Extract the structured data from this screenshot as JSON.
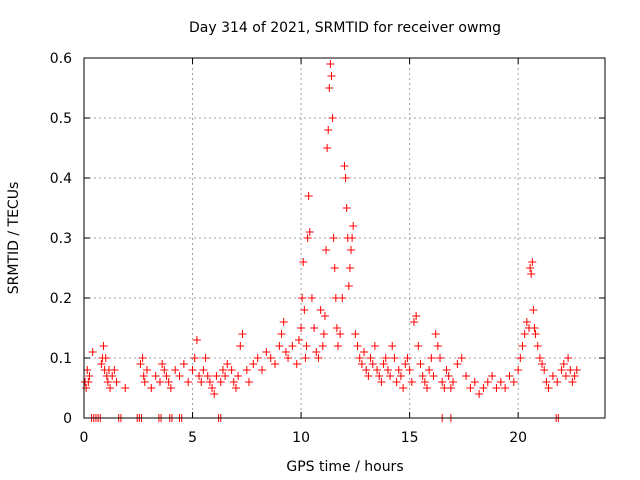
{
  "chart_data": {
    "type": "scatter",
    "title": "Day 314 of 2021, SRMTID for receiver owmg",
    "xlabel": "GPS time / hours",
    "ylabel": "SRMTID / TECUs",
    "xlim": [
      0,
      24
    ],
    "ylim": [
      0,
      0.6
    ],
    "xticks": [
      0,
      5,
      10,
      15,
      20
    ],
    "xtick_labels": [
      "0",
      "5",
      "10",
      "15",
      "20"
    ],
    "yticks": [
      0,
      0.1,
      0.2,
      0.3,
      0.4,
      0.5,
      0.6
    ],
    "ytick_labels": [
      "0",
      "0.1",
      "0.2",
      "0.3",
      "0.4",
      "0.5",
      "0.6"
    ],
    "grid": true,
    "marker": "+",
    "color": "#ff0000",
    "series": [
      {
        "name": "SRMTID",
        "x": [
          0.05,
          0.1,
          0.15,
          0.2,
          0.25,
          0.4,
          0.8,
          0.85,
          0.9,
          0.95,
          1.0,
          1.05,
          1.1,
          1.15,
          1.2,
          1.3,
          1.4,
          1.5,
          1.9,
          2.6,
          2.7,
          2.75,
          2.8,
          2.9,
          3.1,
          3.3,
          3.5,
          3.6,
          3.7,
          3.8,
          3.9,
          4.0,
          4.2,
          4.4,
          4.6,
          4.8,
          5.0,
          5.1,
          5.2,
          5.3,
          5.4,
          5.5,
          5.6,
          5.7,
          5.8,
          5.9,
          6.0,
          6.1,
          6.3,
          6.4,
          6.5,
          6.6,
          6.8,
          6.9,
          7.0,
          7.1,
          7.2,
          7.3,
          7.5,
          7.6,
          7.8,
          8.0,
          8.2,
          8.4,
          8.6,
          8.8,
          9.0,
          9.1,
          9.2,
          9.3,
          9.4,
          9.6,
          9.8,
          9.9,
          10.0,
          10.05,
          10.1,
          10.15,
          10.2,
          10.25,
          10.3,
          10.35,
          10.4,
          10.5,
          10.6,
          10.7,
          10.8,
          10.9,
          11.0,
          11.05,
          11.1,
          11.15,
          11.2,
          11.25,
          11.3,
          11.35,
          11.4,
          11.45,
          11.5,
          11.55,
          11.6,
          11.65,
          11.7,
          11.8,
          11.9,
          12.0,
          12.05,
          12.1,
          12.15,
          12.2,
          12.25,
          12.3,
          12.35,
          12.4,
          12.5,
          12.6,
          12.7,
          12.8,
          12.9,
          13.0,
          13.1,
          13.2,
          13.3,
          13.4,
          13.5,
          13.6,
          13.7,
          13.8,
          13.9,
          14.0,
          14.1,
          14.2,
          14.3,
          14.4,
          14.5,
          14.6,
          14.7,
          14.8,
          14.9,
          15.0,
          15.1,
          15.2,
          15.3,
          15.4,
          15.5,
          15.6,
          15.7,
          15.8,
          15.9,
          16.0,
          16.1,
          16.2,
          16.3,
          16.4,
          16.5,
          16.6,
          16.7,
          16.8,
          16.9,
          17.0,
          17.2,
          17.4,
          17.6,
          17.8,
          18.0,
          18.2,
          18.4,
          18.6,
          18.8,
          19.0,
          19.2,
          19.4,
          19.6,
          19.8,
          20.0,
          20.1,
          20.2,
          20.3,
          20.4,
          20.5,
          20.55,
          20.6,
          20.65,
          20.7,
          20.75,
          20.8,
          20.9,
          21.0,
          21.1,
          21.2,
          21.3,
          21.4,
          21.6,
          21.8,
          22.0,
          22.1,
          22.2,
          22.3,
          22.4,
          22.5,
          22.6,
          22.7,
          0.35,
          0.45,
          0.55,
          0.65,
          0.75,
          1.6,
          1.7,
          2.45,
          2.55,
          2.65,
          3.45,
          3.55,
          3.95,
          4.05,
          4.4,
          4.5,
          6.2,
          6.3,
          16.5,
          16.9,
          21.75,
          21.85
        ],
        "y": [
          0.06,
          0.05,
          0.08,
          0.06,
          0.07,
          0.11,
          0.09,
          0.1,
          0.12,
          0.08,
          0.1,
          0.07,
          0.06,
          0.08,
          0.05,
          0.07,
          0.08,
          0.06,
          0.05,
          0.09,
          0.1,
          0.07,
          0.06,
          0.08,
          0.05,
          0.07,
          0.06,
          0.09,
          0.08,
          0.07,
          0.06,
          0.05,
          0.08,
          0.07,
          0.09,
          0.06,
          0.08,
          0.1,
          0.13,
          0.07,
          0.06,
          0.08,
          0.1,
          0.07,
          0.06,
          0.05,
          0.04,
          0.07,
          0.06,
          0.08,
          0.07,
          0.09,
          0.08,
          0.06,
          0.05,
          0.07,
          0.12,
          0.14,
          0.08,
          0.06,
          0.09,
          0.1,
          0.08,
          0.11,
          0.1,
          0.09,
          0.12,
          0.14,
          0.16,
          0.11,
          0.1,
          0.12,
          0.09,
          0.13,
          0.15,
          0.2,
          0.26,
          0.18,
          0.1,
          0.12,
          0.3,
          0.37,
          0.31,
          0.2,
          0.15,
          0.11,
          0.1,
          0.18,
          0.12,
          0.14,
          0.17,
          0.28,
          0.45,
          0.48,
          0.55,
          0.59,
          0.57,
          0.5,
          0.3,
          0.25,
          0.2,
          0.15,
          0.12,
          0.14,
          0.2,
          0.42,
          0.4,
          0.35,
          0.3,
          0.22,
          0.25,
          0.28,
          0.3,
          0.32,
          0.14,
          0.12,
          0.1,
          0.09,
          0.11,
          0.08,
          0.07,
          0.1,
          0.09,
          0.12,
          0.08,
          0.07,
          0.06,
          0.09,
          0.1,
          0.08,
          0.07,
          0.12,
          0.1,
          0.06,
          0.08,
          0.07,
          0.05,
          0.09,
          0.1,
          0.08,
          0.06,
          0.16,
          0.17,
          0.12,
          0.09,
          0.07,
          0.06,
          0.05,
          0.08,
          0.1,
          0.07,
          0.14,
          0.12,
          0.1,
          0.06,
          0.05,
          0.08,
          0.07,
          0.05,
          0.06,
          0.09,
          0.1,
          0.07,
          0.05,
          0.06,
          0.04,
          0.05,
          0.06,
          0.07,
          0.05,
          0.06,
          0.05,
          0.07,
          0.06,
          0.08,
          0.1,
          0.12,
          0.14,
          0.16,
          0.15,
          0.25,
          0.24,
          0.26,
          0.18,
          0.15,
          0.14,
          0.12,
          0.1,
          0.09,
          0.08,
          0.06,
          0.05,
          0.07,
          0.06,
          0.08,
          0.09,
          0.07,
          0.1,
          0.08,
          0.06,
          0.07,
          0.08,
          0.0,
          0.0,
          0.0,
          0.0,
          0.0,
          0.0,
          0.0,
          0.0,
          0.0,
          0.0,
          0.0,
          0.0,
          0.0,
          0.0,
          0.0,
          0.0,
          0.0,
          0.0,
          0.0,
          0.0,
          0.0,
          0.0
        ]
      }
    ]
  }
}
